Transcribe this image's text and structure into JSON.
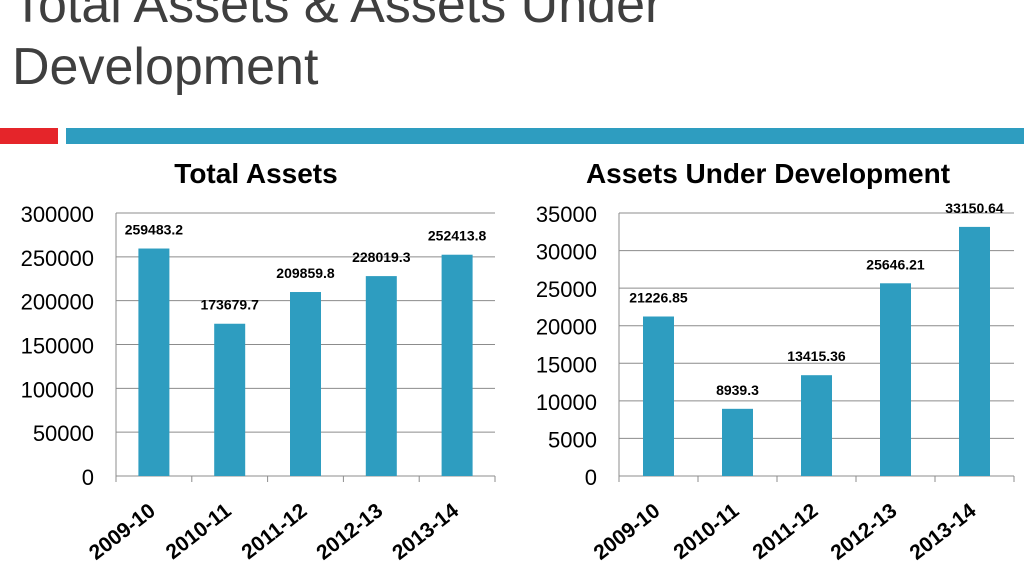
{
  "slide": {
    "title_line1": "Total Assets & Assets Under",
    "title_line2": "Development"
  },
  "colors": {
    "bar": "#2E9DC0",
    "accent_red": "#E5252A",
    "accent_blue": "#2E9DC0",
    "title_text": "#3f3f3f"
  },
  "chart_data": [
    {
      "type": "bar",
      "title": "Total Assets",
      "categories": [
        "2009-10",
        "2010-11",
        "2011-12",
        "2012-13",
        "2013-14"
      ],
      "values": [
        259483.2,
        173679.7,
        209859.8,
        228019.3,
        252413.8
      ],
      "data_labels": [
        "259483.2",
        "173679.7",
        "209859.8",
        "228019.3",
        "252413.8"
      ],
      "ylim": [
        0,
        300000
      ],
      "yticks": [
        0,
        50000,
        100000,
        150000,
        200000,
        250000,
        300000
      ],
      "xlabel": "",
      "ylabel": "",
      "grid": true,
      "legend": "none"
    },
    {
      "type": "bar",
      "title": "Assets Under Development",
      "categories": [
        "2009-10",
        "2010-11",
        "2011-12",
        "2012-13",
        "2013-14"
      ],
      "values": [
        21226.85,
        8939.3,
        13415.36,
        25646.21,
        33150.64
      ],
      "data_labels": [
        "21226.85",
        "8939.3",
        "13415.36",
        "25646.21",
        "33150.64"
      ],
      "ylim": [
        0,
        35000
      ],
      "yticks": [
        0,
        5000,
        10000,
        15000,
        20000,
        25000,
        30000,
        35000
      ],
      "xlabel": "",
      "ylabel": "",
      "grid": true,
      "legend": "none"
    }
  ]
}
